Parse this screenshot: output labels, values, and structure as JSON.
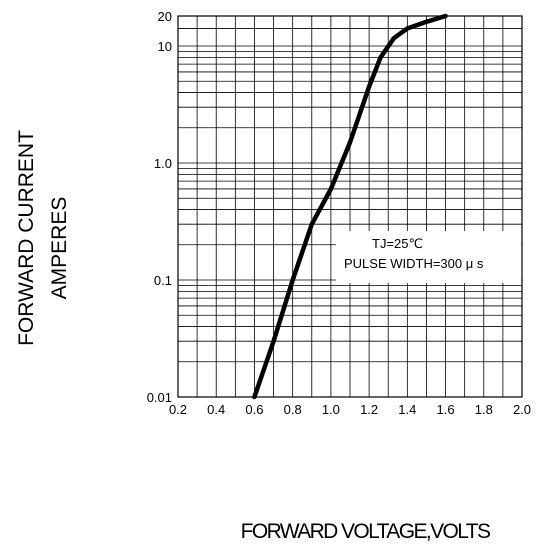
{
  "chart_data": {
    "type": "line",
    "title": "",
    "ylabel_line1": "FORWARD CURRENT",
    "ylabel_line2": "AMPERES",
    "xlabel": "FORWARD VOLTAGE,VOLTS",
    "xscale": "linear",
    "yscale": "log",
    "xlim": [
      0.2,
      2.0
    ],
    "ylim": [
      0.01,
      20
    ],
    "x_ticks": [
      0.2,
      0.4,
      0.6,
      0.8,
      1.0,
      1.2,
      1.4,
      1.6,
      1.8,
      2.0
    ],
    "x_tick_labels": [
      "0.2",
      "0.4",
      "0.6",
      "0.8",
      "1.0",
      "1.2",
      "1.4",
      "1.6",
      "1.8",
      "2.0"
    ],
    "y_tick_labels": [
      {
        "value": 0.01,
        "label": "0.01"
      },
      {
        "value": 0.1,
        "label": "0.1"
      },
      {
        "value": 1.0,
        "label": "1.0"
      },
      {
        "value": 10,
        "label": "10"
      },
      {
        "value": 20,
        "label": "20"
      }
    ],
    "grid": true,
    "annotation": {
      "line1": "TJ=25℃",
      "line2": "PULSE WIDTH=300 μ s"
    },
    "series": [
      {
        "x": [
          0.6,
          0.7,
          0.8,
          0.9,
          1.0,
          1.1,
          1.2,
          1.26,
          1.33,
          1.4,
          1.5,
          1.6
        ],
        "y": [
          0.01,
          0.03,
          0.1,
          0.3,
          0.6,
          1.5,
          4.5,
          8.0,
          12.0,
          15.0,
          17.5,
          20.0
        ]
      }
    ]
  }
}
